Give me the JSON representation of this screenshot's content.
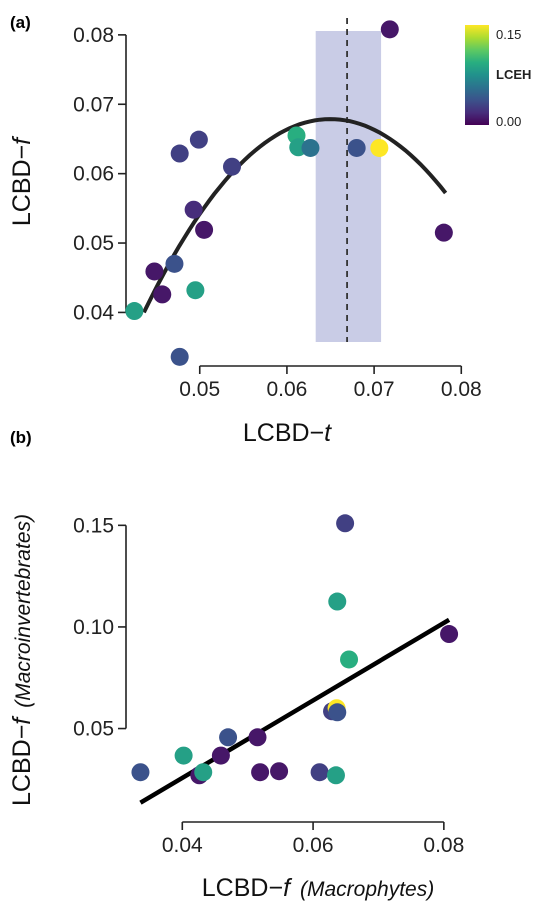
{
  "chart_data": [
    {
      "panel": "(a)",
      "type": "scatter",
      "xlabel_main": "LCBD−",
      "xlabel_italic": "t",
      "ylabel_main": "LCBD−",
      "ylabel_italic": "f",
      "xlim": [
        0.042,
        0.081
      ],
      "ylim": [
        0.033,
        0.082
      ],
      "x_ticks": [
        0.05,
        0.06,
        0.07,
        0.08
      ],
      "x_tick_labels": [
        "0.05",
        "0.06",
        "0.07",
        "0.08"
      ],
      "y_ticks": [
        0.04,
        0.05,
        0.06,
        0.07,
        0.08
      ],
      "y_tick_labels": [
        "0.04",
        "0.05",
        "0.06",
        "0.07",
        "0.08"
      ],
      "color_variable": "LCEH",
      "colorbar": {
        "title": "LCEH",
        "range": [
          0.0,
          0.16
        ],
        "ticks": [
          0.15,
          0.0
        ],
        "tick_labels": [
          "0.15",
          "0.00"
        ]
      },
      "points": [
        {
          "x": 0.0718,
          "y": 0.0808,
          "c": 0.01
        },
        {
          "x": 0.078,
          "y": 0.0515,
          "c": 0.01
        },
        {
          "x": 0.0425,
          "y": 0.0402,
          "c": 0.09
        },
        {
          "x": 0.0448,
          "y": 0.0459,
          "c": 0.01
        },
        {
          "x": 0.0457,
          "y": 0.0426,
          "c": 0.01
        },
        {
          "x": 0.0471,
          "y": 0.047,
          "c": 0.04
        },
        {
          "x": 0.0477,
          "y": 0.0629,
          "c": 0.03
        },
        {
          "x": 0.0477,
          "y": 0.0336,
          "c": 0.04
        },
        {
          "x": 0.0493,
          "y": 0.0548,
          "c": 0.02
        },
        {
          "x": 0.0495,
          "y": 0.0432,
          "c": 0.09
        },
        {
          "x": 0.0499,
          "y": 0.0649,
          "c": 0.03
        },
        {
          "x": 0.0505,
          "y": 0.0519,
          "c": 0.01
        },
        {
          "x": 0.0537,
          "y": 0.061,
          "c": 0.03
        },
        {
          "x": 0.0611,
          "y": 0.0655,
          "c": 0.1
        },
        {
          "x": 0.0613,
          "y": 0.0638,
          "c": 0.09
        },
        {
          "x": 0.0627,
          "y": 0.0637,
          "c": 0.06
        },
        {
          "x": 0.068,
          "y": 0.0637,
          "c": 0.04
        },
        {
          "x": 0.0706,
          "y": 0.0637,
          "c": 0.16
        }
      ],
      "fit_curve": {
        "type": "quadratic",
        "x_range": [
          0.0436,
          0.0782
        ],
        "points": [
          [
            0.0436,
            0.0382
          ],
          [
            0.046,
            0.0465
          ],
          [
            0.05,
            0.0556
          ],
          [
            0.054,
            0.0616
          ],
          [
            0.058,
            0.0652
          ],
          [
            0.062,
            0.0668
          ],
          [
            0.066,
            0.0671
          ],
          [
            0.07,
            0.0652
          ],
          [
            0.074,
            0.0624
          ],
          [
            0.0782,
            0.0585
          ]
        ]
      },
      "shaded_band_x": [
        0.0633,
        0.0708
      ],
      "dashed_vline_x": 0.0669
    },
    {
      "panel": "(b)",
      "type": "scatter",
      "xlabel_main": "LCBD−",
      "xlabel_italic": "f",
      "xlabel_paren": "(Macrophytes)",
      "ylabel_main": "LCBD−",
      "ylabel_italic": "f",
      "ylabel_paren": "(Macroinvertebrates)",
      "xlim": [
        0.032,
        0.084
      ],
      "ylim": [
        0.005,
        0.16
      ],
      "x_ticks": [
        0.04,
        0.06,
        0.08
      ],
      "x_tick_labels": [
        "0.04",
        "0.06",
        "0.08"
      ],
      "y_ticks": [
        0.05,
        0.1,
        0.15
      ],
      "y_tick_labels": [
        "0.05",
        "0.10",
        "0.15"
      ],
      "points": [
        {
          "x": 0.0336,
          "y": 0.0285,
          "c": 0.04
        },
        {
          "x": 0.0402,
          "y": 0.0367,
          "c": 0.09
        },
        {
          "x": 0.0426,
          "y": 0.027,
          "c": 0.01
        },
        {
          "x": 0.0432,
          "y": 0.0285,
          "c": 0.09
        },
        {
          "x": 0.0459,
          "y": 0.0367,
          "c": 0.01
        },
        {
          "x": 0.047,
          "y": 0.0457,
          "c": 0.04
        },
        {
          "x": 0.0515,
          "y": 0.0457,
          "c": 0.01
        },
        {
          "x": 0.0519,
          "y": 0.0285,
          "c": 0.01
        },
        {
          "x": 0.0548,
          "y": 0.029,
          "c": 0.01
        },
        {
          "x": 0.061,
          "y": 0.0285,
          "c": 0.03
        },
        {
          "x": 0.0629,
          "y": 0.0585,
          "c": 0.03
        },
        {
          "x": 0.0635,
          "y": 0.027,
          "c": 0.09
        },
        {
          "x": 0.0636,
          "y": 0.06,
          "c": 0.16
        },
        {
          "x": 0.0637,
          "y": 0.058,
          "c": 0.04
        },
        {
          "x": 0.0637,
          "y": 0.1125,
          "c": 0.09
        },
        {
          "x": 0.0649,
          "y": 0.151,
          "c": 0.03
        },
        {
          "x": 0.0655,
          "y": 0.084,
          "c": 0.1
        },
        {
          "x": 0.0808,
          "y": 0.0965,
          "c": 0.01
        }
      ],
      "fit_line": [
        [
          0.0336,
          0.0135
        ],
        [
          0.0808,
          0.1035
        ]
      ]
    }
  ],
  "colors": {
    "band": "#c9cce6",
    "fit": "#222222",
    "viridis": [
      "#440154",
      "#472d7b",
      "#3b528b",
      "#2c728e",
      "#21918c",
      "#28ae80",
      "#5ec962",
      "#addc30",
      "#fde725"
    ]
  }
}
